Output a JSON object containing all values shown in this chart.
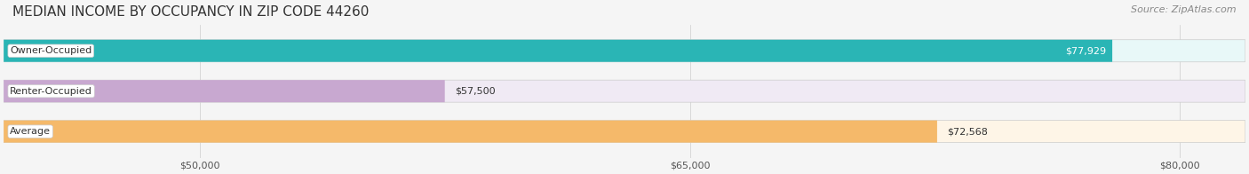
{
  "title": "MEDIAN INCOME BY OCCUPANCY IN ZIP CODE 44260",
  "source": "Source: ZipAtlas.com",
  "categories": [
    "Owner-Occupied",
    "Renter-Occupied",
    "Average"
  ],
  "values": [
    77929,
    57500,
    72568
  ],
  "labels": [
    "$77,929",
    "$57,500",
    "$72,568"
  ],
  "bar_colors": [
    "#2ab5b5",
    "#c8a8d0",
    "#f5b96a"
  ],
  "bar_bg_colors": [
    "#e8f8f8",
    "#f0eaf4",
    "#fef5e7"
  ],
  "xlim_min": 44000,
  "xlim_max": 82000,
  "xticks": [
    50000,
    65000,
    80000
  ],
  "xtick_labels": [
    "$50,000",
    "$65,000",
    "$80,000"
  ],
  "title_fontsize": 11,
  "source_fontsize": 8,
  "label_fontsize": 8,
  "bar_height": 0.55,
  "background_color": "#f5f5f5"
}
